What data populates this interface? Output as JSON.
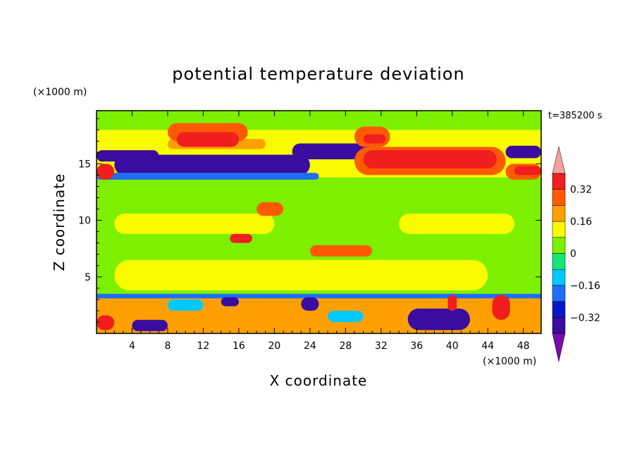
{
  "chart_data": {
    "type": "heatmap",
    "title": "potential temperature deviation",
    "xlabel": "X coordinate",
    "ylabel": "Z coordinate",
    "x_unit": "(×1000 m)",
    "y_unit": "(×1000 m)",
    "time_label": "t=385200 s",
    "xlim": [
      0,
      50
    ],
    "ylim": [
      0,
      19.7
    ],
    "x_ticks": [
      4,
      8,
      12,
      16,
      20,
      24,
      28,
      32,
      36,
      40,
      44,
      48
    ],
    "y_ticks": [
      5,
      10,
      15
    ],
    "colorbar": {
      "levels": [
        -0.4,
        -0.32,
        -0.24,
        -0.16,
        -0.08,
        0,
        0.08,
        0.16,
        0.24,
        0.32,
        0.4
      ],
      "tick_values": [
        0.32,
        0.16,
        0,
        -0.16,
        -0.32
      ],
      "tick_labels": [
        "0.32",
        "0.16",
        "0",
        "−0.16",
        "−0.32"
      ],
      "colors": [
        "#7A0AAA",
        "#3A0CA0",
        "#0A14C8",
        "#1E6EFA",
        "#00C8FA",
        "#14E678",
        "#7DF000",
        "#FAFA00",
        "#FFA000",
        "#FF5A00",
        "#F01E1E",
        "#F5A0A0"
      ]
    },
    "regions": [
      {
        "x0": 0,
        "x1": 50,
        "z0": 0,
        "z1": 19.7,
        "level": 0.02
      },
      {
        "x0": 0,
        "x1": 50,
        "z0": 13.8,
        "z1": 19.7,
        "level": 0.1
      },
      {
        "x0": 0,
        "x1": 50,
        "z0": 18.0,
        "z1": 19.7,
        "level": 0.02
      },
      {
        "x0": 2,
        "x1": 44,
        "z0": 3.8,
        "z1": 6.5,
        "level": 0.1
      },
      {
        "x0": 2,
        "x1": 20,
        "z0": 8.8,
        "z1": 10.6,
        "level": 0.1
      },
      {
        "x0": 34,
        "x1": 47,
        "z0": 8.8,
        "z1": 10.6,
        "level": 0.1
      },
      {
        "x0": 0,
        "x1": 7,
        "z0": 15.2,
        "z1": 16.2,
        "level": -0.36
      },
      {
        "x0": 2,
        "x1": 24,
        "z0": 14.0,
        "z1": 15.8,
        "level": -0.36
      },
      {
        "x0": 22,
        "x1": 31,
        "z0": 15.4,
        "z1": 16.8,
        "level": -0.36
      },
      {
        "x0": 46,
        "x1": 50,
        "z0": 15.5,
        "z1": 16.6,
        "level": -0.36
      },
      {
        "x0": 0,
        "x1": 25,
        "z0": 13.6,
        "z1": 14.2,
        "level": -0.2
      },
      {
        "x0": 8,
        "x1": 19,
        "z0": 16.3,
        "z1": 17.2,
        "level": 0.2
      },
      {
        "x0": 8,
        "x1": 17,
        "z0": 17.0,
        "z1": 18.6,
        "level": 0.3
      },
      {
        "x0": 9,
        "x1": 16,
        "z0": 16.5,
        "z1": 17.8,
        "level": 0.38
      },
      {
        "x0": 29,
        "x1": 33,
        "z0": 16.5,
        "z1": 18.3,
        "level": 0.3
      },
      {
        "x0": 30,
        "x1": 32.5,
        "z0": 16.8,
        "z1": 17.6,
        "level": 0.38
      },
      {
        "x0": 29,
        "x1": 46,
        "z0": 14.0,
        "z1": 16.5,
        "level": 0.28
      },
      {
        "x0": 30,
        "x1": 45,
        "z0": 14.6,
        "z1": 16.2,
        "level": 0.38
      },
      {
        "x0": 46,
        "x1": 50,
        "z0": 13.6,
        "z1": 15.0,
        "level": 0.3
      },
      {
        "x0": 47,
        "x1": 50,
        "z0": 14.0,
        "z1": 14.8,
        "level": 0.38
      },
      {
        "x0": 0,
        "x1": 2,
        "z0": 13.6,
        "z1": 15.0,
        "level": 0.38
      },
      {
        "x0": 18,
        "x1": 21,
        "z0": 10.4,
        "z1": 11.6,
        "level": 0.3
      },
      {
        "x0": 15,
        "x1": 17.5,
        "z0": 8.0,
        "z1": 8.8,
        "level": 0.38
      },
      {
        "x0": 0,
        "x1": 50,
        "z0": 0,
        "z1": 3.5,
        "level": 0.2
      },
      {
        "x0": 0,
        "x1": 50,
        "z0": 3.1,
        "z1": 3.5,
        "level": -0.2
      },
      {
        "x0": 4,
        "x1": 8,
        "z0": 0.2,
        "z1": 1.2,
        "level": -0.36
      },
      {
        "x0": 14,
        "x1": 16,
        "z0": 2.4,
        "z1": 3.2,
        "level": -0.36
      },
      {
        "x0": 23,
        "x1": 25,
        "z0": 2.0,
        "z1": 3.2,
        "level": -0.36
      },
      {
        "x0": 35,
        "x1": 42,
        "z0": 0.3,
        "z1": 2.2,
        "level": -0.36
      },
      {
        "x0": 26,
        "x1": 30,
        "z0": 1.0,
        "z1": 2.0,
        "level": -0.12
      },
      {
        "x0": 8,
        "x1": 12,
        "z0": 2.0,
        "z1": 3.0,
        "level": -0.12
      },
      {
        "x0": 39.5,
        "x1": 40.5,
        "z0": 2.0,
        "z1": 3.4,
        "level": 0.38
      },
      {
        "x0": 44.5,
        "x1": 46.5,
        "z0": 1.2,
        "z1": 3.4,
        "level": 0.38
      },
      {
        "x0": 0,
        "x1": 2,
        "z0": 0.3,
        "z1": 1.6,
        "level": 0.32
      },
      {
        "x0": 24,
        "x1": 31,
        "z0": 6.8,
        "z1": 7.8,
        "level": 0.3
      }
    ]
  }
}
